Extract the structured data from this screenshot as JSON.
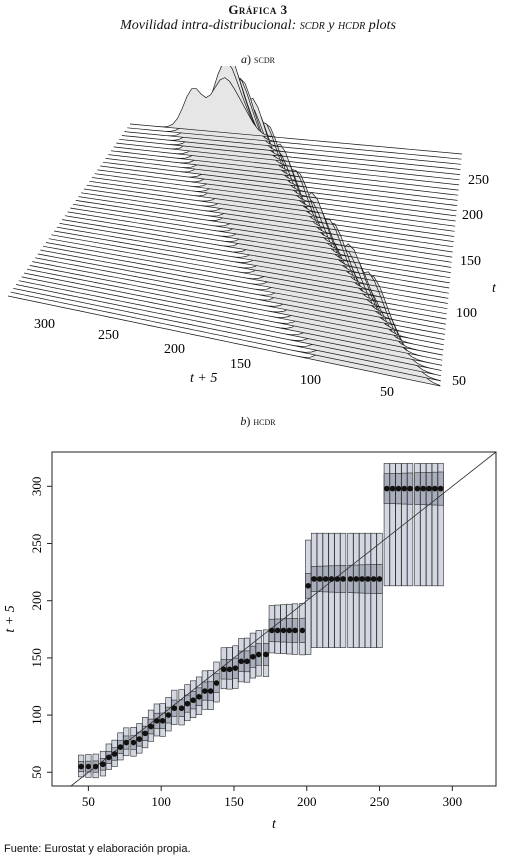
{
  "figure": {
    "number": "Gráfica 3",
    "title_prefix": "Movilidad intra-distribucional: ",
    "title_sc1": "scdr",
    "title_mid": " y ",
    "title_sc2": "hcdr",
    "title_suffix": " plots"
  },
  "panel_a": {
    "letter": "a",
    "name": "scdr"
  },
  "panel_b": {
    "letter": "b",
    "name": "hcdr"
  },
  "source": "Fuente: Eurostat y elaboración propia.",
  "colors": {
    "box_fill": "#d3d7e2",
    "box_stroke": "#2a2a2a",
    "median_fill": "#a9aebc",
    "dot": "#111111",
    "surface_fill": "#e6e6e6"
  },
  "chart_data": [
    {
      "type": "area",
      "subtype": "3d-surface",
      "panel": "a",
      "t_axis": {
        "label": "t",
        "ticks": [
          "250",
          "200",
          "150",
          "100",
          "50"
        ]
      },
      "t5_axis": {
        "label": "t + 5",
        "ticks": [
          "300",
          "250",
          "200",
          "150",
          "100",
          "50"
        ]
      },
      "grid": false
    },
    {
      "type": "scatter",
      "subtype": "highest-conditional-density-region",
      "panel": "b",
      "xlabel": "t",
      "ylabel": "t + 5",
      "xlim": [
        25,
        330
      ],
      "ylim": [
        38,
        330
      ],
      "xticks": [
        "50",
        "100",
        "150",
        "200",
        "250",
        "300"
      ],
      "yticks": [
        "50",
        "100",
        "150",
        "200",
        "250",
        "300"
      ],
      "diagonal": true,
      "conditional_modes": [
        {
          "x": 45,
          "y": 55
        },
        {
          "x": 50,
          "y": 55
        },
        {
          "x": 55,
          "y": 55
        },
        {
          "x": 60,
          "y": 57
        },
        {
          "x": 64,
          "y": 63
        },
        {
          "x": 68,
          "y": 66
        },
        {
          "x": 72,
          "y": 72
        },
        {
          "x": 76,
          "y": 76
        },
        {
          "x": 81,
          "y": 76
        },
        {
          "x": 85,
          "y": 79
        },
        {
          "x": 89,
          "y": 84
        },
        {
          "x": 93,
          "y": 90
        },
        {
          "x": 97,
          "y": 95
        },
        {
          "x": 101,
          "y": 95
        },
        {
          "x": 105,
          "y": 100
        },
        {
          "x": 109,
          "y": 106
        },
        {
          "x": 114,
          "y": 106
        },
        {
          "x": 118,
          "y": 110
        },
        {
          "x": 122,
          "y": 113
        },
        {
          "x": 126,
          "y": 116
        },
        {
          "x": 130,
          "y": 121
        },
        {
          "x": 134,
          "y": 121
        },
        {
          "x": 138,
          "y": 128
        },
        {
          "x": 143,
          "y": 140
        },
        {
          "x": 147,
          "y": 140
        },
        {
          "x": 151,
          "y": 141
        },
        {
          "x": 155,
          "y": 147
        },
        {
          "x": 159,
          "y": 147
        },
        {
          "x": 163,
          "y": 151
        },
        {
          "x": 167,
          "y": 153
        },
        {
          "x": 172,
          "y": 153
        },
        {
          "x": 176,
          "y": 174
        },
        {
          "x": 180,
          "y": 174
        },
        {
          "x": 184,
          "y": 174
        },
        {
          "x": 188,
          "y": 174
        },
        {
          "x": 192,
          "y": 174
        },
        {
          "x": 197,
          "y": 174
        },
        {
          "x": 201,
          "y": 213
        },
        {
          "x": 205,
          "y": 219
        },
        {
          "x": 209,
          "y": 219
        },
        {
          "x": 213,
          "y": 219
        },
        {
          "x": 217,
          "y": 219
        },
        {
          "x": 221,
          "y": 219
        },
        {
          "x": 225,
          "y": 219
        },
        {
          "x": 230,
          "y": 219
        },
        {
          "x": 234,
          "y": 219
        },
        {
          "x": 238,
          "y": 219
        },
        {
          "x": 242,
          "y": 219
        },
        {
          "x": 246,
          "y": 219
        },
        {
          "x": 250,
          "y": 219
        },
        {
          "x": 255,
          "y": 298
        },
        {
          "x": 259,
          "y": 298
        },
        {
          "x": 263,
          "y": 298
        },
        {
          "x": 267,
          "y": 298
        },
        {
          "x": 271,
          "y": 298
        },
        {
          "x": 276,
          "y": 298
        },
        {
          "x": 280,
          "y": 298
        },
        {
          "x": 284,
          "y": 298
        },
        {
          "x": 288,
          "y": 298
        },
        {
          "x": 292,
          "y": 298
        }
      ]
    }
  ]
}
